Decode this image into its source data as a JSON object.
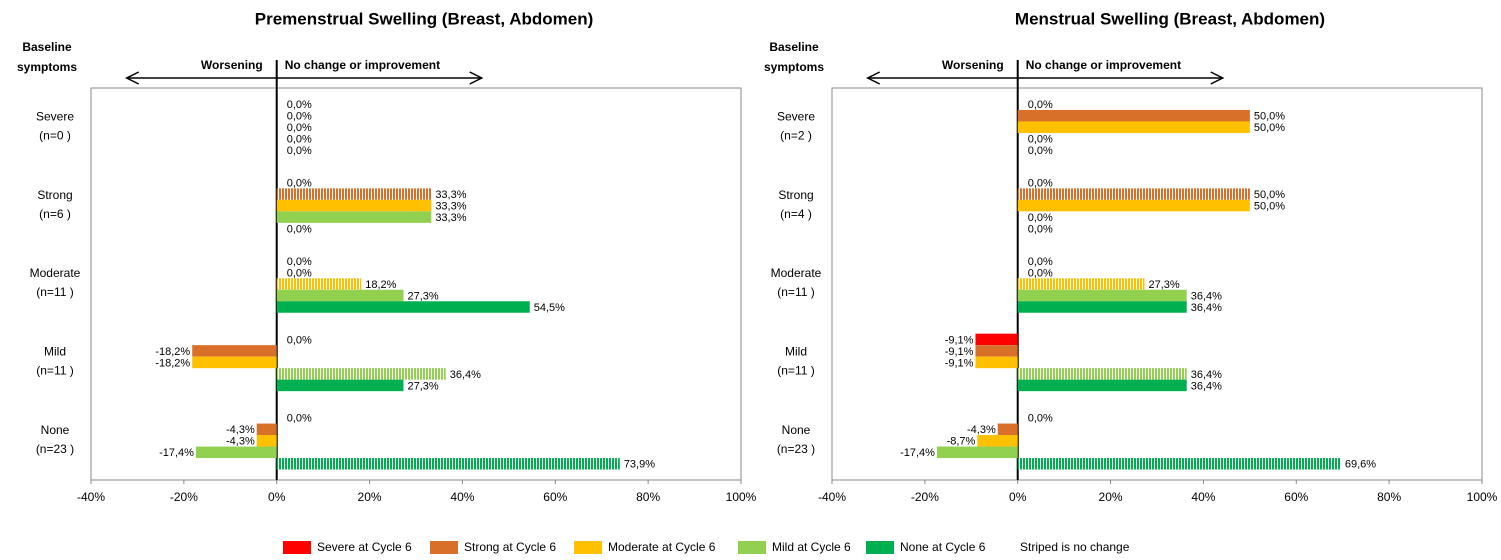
{
  "chart_data": [
    {
      "type": "bar",
      "title": "Premenstrual Swelling (Breast, Abdomen)",
      "row_header": [
        "Baseline",
        "symptoms"
      ],
      "annotations": {
        "left": "Worsening",
        "right": "No change or improvement"
      },
      "categories": [
        "Severe",
        "Strong",
        "Moderate",
        "Mild",
        "None"
      ],
      "category_counts": [
        "(n=0 )",
        "(n=6 )",
        "(n=11 )",
        "(n=11 )",
        "(n=23 )"
      ],
      "xlim": [
        -40,
        100
      ],
      "xticks": [
        {
          "value": -40,
          "label": "-40%"
        },
        {
          "value": -20,
          "label": "-20%"
        },
        {
          "value": 0,
          "label": "0%"
        },
        {
          "value": 20,
          "label": "20%"
        },
        {
          "value": 40,
          "label": "40%"
        },
        {
          "value": 60,
          "label": "60%"
        },
        {
          "value": 80,
          "label": "80%"
        },
        {
          "value": 100,
          "label": "100%"
        }
      ],
      "grid": false,
      "legend_note": "Striped is no change",
      "series": [
        {
          "name": "Severe at Cycle 6",
          "color": "#ff0000",
          "values": [
            0,
            0,
            0,
            0,
            0
          ],
          "value_labels": [
            "0,0%",
            "0,0%",
            "0,0%",
            "0,0%",
            "0,0%"
          ]
        },
        {
          "name": "Strong at Cycle 6",
          "color": "#d9702a",
          "values": [
            0,
            33.3,
            0,
            -18.2,
            -4.3
          ],
          "value_labels": [
            "0,0%",
            "33,3%",
            "0,0%",
            "-18,2%",
            "-4,3%"
          ]
        },
        {
          "name": "Moderate at Cycle 6",
          "color": "#ffc000",
          "values": [
            0,
            33.3,
            18.2,
            -18.2,
            -4.3
          ],
          "value_labels": [
            "0,0%",
            "33,3%",
            "18,2%",
            "-18,2%",
            "-4,3%"
          ]
        },
        {
          "name": "Mild at Cycle 6",
          "color": "#92d050",
          "values": [
            0,
            33.3,
            27.3,
            36.4,
            -17.4
          ],
          "value_labels": [
            "0,0%",
            "33,3%",
            "27,3%",
            "36,4%",
            "-17,4%"
          ]
        },
        {
          "name": "None at Cycle 6",
          "color": "#00b050",
          "values": [
            0,
            0,
            54.5,
            27.3,
            73.9
          ],
          "value_labels": [
            "0,0%",
            "0,0%",
            "54,5%",
            "27,3%",
            "73,9%"
          ]
        }
      ]
    },
    {
      "type": "bar",
      "title": "Menstrual Swelling (Breast, Abdomen)",
      "row_header": [
        "Baseline",
        "symptoms"
      ],
      "annotations": {
        "left": "Worsening",
        "right": "No change or improvement"
      },
      "categories": [
        "Severe",
        "Strong",
        "Moderate",
        "Mild",
        "None"
      ],
      "category_counts": [
        "(n=2 )",
        "(n=4 )",
        "(n=11 )",
        "(n=11 )",
        "(n=23 )"
      ],
      "xlim": [
        -40,
        100
      ],
      "xticks": [
        {
          "value": -40,
          "label": "-40%"
        },
        {
          "value": -20,
          "label": "-20%"
        },
        {
          "value": 0,
          "label": "0%"
        },
        {
          "value": 20,
          "label": "20%"
        },
        {
          "value": 40,
          "label": "40%"
        },
        {
          "value": 60,
          "label": "60%"
        },
        {
          "value": 80,
          "label": "80%"
        },
        {
          "value": 100,
          "label": "100%"
        }
      ],
      "grid": false,
      "series": [
        {
          "name": "Severe at Cycle 6",
          "color": "#ff0000",
          "values": [
            0,
            0,
            0,
            -9.1,
            0
          ],
          "value_labels": [
            "0,0%",
            "0,0%",
            "0,0%",
            "-9,1%",
            "0,0%"
          ]
        },
        {
          "name": "Strong at Cycle 6",
          "color": "#d9702a",
          "values": [
            50,
            50,
            0,
            -9.1,
            -4.3
          ],
          "value_labels": [
            "50,0%",
            "50,0%",
            "0,0%",
            "-9,1%",
            "-4,3%"
          ]
        },
        {
          "name": "Moderate at Cycle 6",
          "color": "#ffc000",
          "values": [
            50,
            50,
            27.3,
            -9.1,
            -8.7
          ],
          "value_labels": [
            "50,0%",
            "50,0%",
            "27,3%",
            "-9,1%",
            "-8,7%"
          ]
        },
        {
          "name": "Mild at Cycle 6",
          "color": "#92d050",
          "values": [
            0,
            0,
            36.4,
            36.4,
            -17.4
          ],
          "value_labels": [
            "0,0%",
            "0,0%",
            "36,4%",
            "36,4%",
            "-17,4%"
          ]
        },
        {
          "name": "None at Cycle 6",
          "color": "#00b050",
          "values": [
            0,
            0,
            36.4,
            36.4,
            69.6
          ],
          "value_labels": [
            "0,0%",
            "0,0%",
            "36,4%",
            "36,4%",
            "69,6%"
          ]
        }
      ]
    }
  ]
}
